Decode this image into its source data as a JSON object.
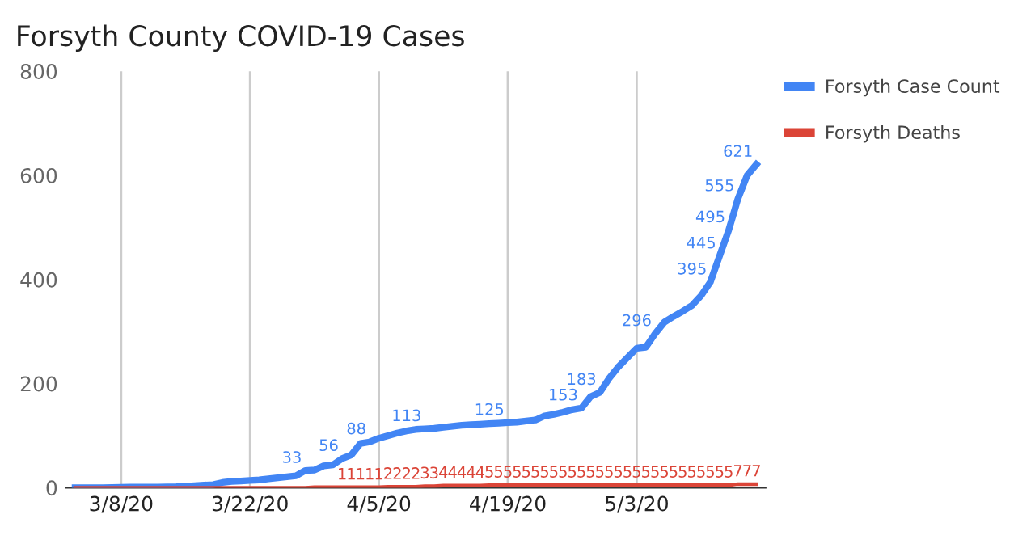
{
  "chart_data": {
    "type": "line",
    "title": "Forsyth County COVID-19 Cases",
    "x": [
      "2020-03-03",
      "2020-03-06",
      "2020-03-09",
      "2020-03-11",
      "2020-03-12",
      "2020-03-14",
      "2020-03-16",
      "2020-03-17",
      "2020-03-18",
      "2020-03-19",
      "2020-03-20",
      "2020-03-21",
      "2020-03-22",
      "2020-03-23",
      "2020-03-24",
      "2020-03-25",
      "2020-03-26",
      "2020-03-27",
      "2020-03-28",
      "2020-03-29",
      "2020-03-30",
      "2020-03-31",
      "2020-04-01",
      "2020-04-02",
      "2020-04-03",
      "2020-04-04",
      "2020-04-05",
      "2020-04-06",
      "2020-04-07",
      "2020-04-08",
      "2020-04-09",
      "2020-04-10",
      "2020-04-11",
      "2020-04-12",
      "2020-04-13",
      "2020-04-14",
      "2020-04-15",
      "2020-04-16",
      "2020-04-17",
      "2020-04-18",
      "2020-04-19",
      "2020-04-20",
      "2020-04-21",
      "2020-04-22",
      "2020-04-23",
      "2020-04-24",
      "2020-04-25",
      "2020-04-26",
      "2020-04-27",
      "2020-04-28",
      "2020-04-29",
      "2020-04-30",
      "2020-05-01",
      "2020-05-02",
      "2020-05-03",
      "2020-05-04",
      "2020-05-05",
      "2020-05-06",
      "2020-05-07",
      "2020-05-08",
      "2020-05-09",
      "2020-05-10",
      "2020-05-11",
      "2020-05-12",
      "2020-05-13",
      "2020-05-14",
      "2020-05-15",
      "2020-05-16"
    ],
    "series": [
      {
        "name": "Forsyth Case Count",
        "color": "#4285f4",
        "values": [
          0,
          0,
          1,
          1,
          1,
          2,
          4,
          5,
          6,
          10,
          12,
          13,
          14,
          15,
          17,
          19,
          21,
          23,
          33,
          34,
          42,
          44,
          56,
          63,
          85,
          88,
          95,
          100,
          105,
          109,
          112,
          113,
          114,
          116,
          118,
          120,
          121,
          122,
          123,
          124,
          125,
          126,
          128,
          130,
          138,
          141,
          145,
          150,
          153,
          175,
          183,
          210,
          232,
          250,
          268,
          270,
          296,
          318,
          329,
          339,
          350,
          369,
          395,
          445,
          495,
          555,
          600,
          621
        ],
        "value_labels": [
          null,
          null,
          null,
          null,
          null,
          null,
          null,
          null,
          null,
          null,
          null,
          null,
          null,
          null,
          null,
          null,
          null,
          null,
          "33",
          null,
          null,
          null,
          "56",
          null,
          null,
          "88",
          null,
          null,
          null,
          null,
          null,
          "113",
          null,
          null,
          null,
          null,
          null,
          null,
          null,
          null,
          "125",
          null,
          null,
          null,
          null,
          null,
          null,
          null,
          "153",
          null,
          "183",
          null,
          null,
          null,
          null,
          null,
          "296",
          null,
          null,
          null,
          null,
          null,
          "395",
          "445",
          "495",
          "555",
          null,
          "621"
        ]
      },
      {
        "name": "Forsyth Deaths",
        "color": "#db4437",
        "values": [
          0,
          0,
          0,
          0,
          0,
          0,
          0,
          0,
          0,
          0,
          0,
          0,
          0,
          0,
          0,
          0,
          0,
          0,
          0,
          1,
          1,
          1,
          1,
          1,
          1,
          1,
          1,
          2,
          2,
          2,
          2,
          3,
          3,
          4,
          4,
          4,
          4,
          4,
          5,
          5,
          5,
          5,
          5,
          5,
          5,
          5,
          5,
          5,
          5,
          5,
          5,
          5,
          5,
          5,
          5,
          5,
          5,
          5,
          5,
          5,
          5,
          5,
          5,
          5,
          5,
          7,
          7,
          7
        ],
        "value_labels": [
          null,
          null,
          null,
          null,
          null,
          null,
          null,
          null,
          null,
          null,
          null,
          null,
          null,
          null,
          null,
          null,
          null,
          null,
          null,
          null,
          null,
          null,
          "1",
          "1",
          "1",
          "1",
          "1",
          "2",
          "2",
          "2",
          "2",
          "3",
          "3",
          "4",
          "4",
          "4",
          "4",
          "4",
          "5",
          "5",
          "5",
          "5",
          "5",
          "5",
          "5",
          "5",
          "5",
          "5",
          "5",
          "5",
          "5",
          "5",
          "5",
          "5",
          "5",
          "5",
          "5",
          "5",
          "5",
          "5",
          "5",
          "5",
          "5",
          "5",
          "5",
          "7",
          "7",
          "7"
        ]
      }
    ],
    "xlim": [
      "2020-03-02",
      "2020-05-17"
    ],
    "xticks": [
      {
        "value": "2020-03-08",
        "label": "3/8/20"
      },
      {
        "value": "2020-03-22",
        "label": "3/22/20"
      },
      {
        "value": "2020-04-05",
        "label": "4/5/20"
      },
      {
        "value": "2020-04-19",
        "label": "4/19/20"
      },
      {
        "value": "2020-05-03",
        "label": "5/3/20"
      }
    ],
    "ylim": [
      0,
      800
    ],
    "yticks": [
      0,
      200,
      400,
      600,
      800
    ],
    "grid": "x",
    "legend": "top right"
  }
}
